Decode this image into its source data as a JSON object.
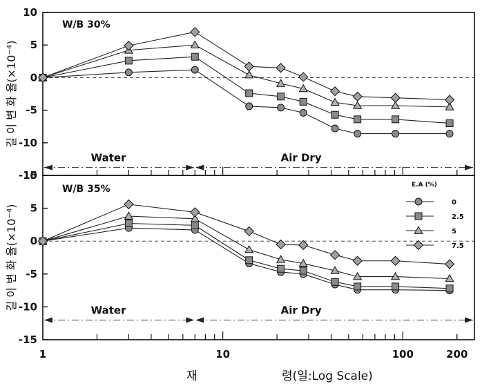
{
  "chart_data": {
    "type": "line",
    "x_scale": "log",
    "xlim": [
      1,
      250
    ],
    "x_ticks": [
      1,
      10,
      100,
      200
    ],
    "x_tick_labels": [
      "1",
      "10",
      "100",
      "200"
    ],
    "xlabel": [
      "재",
      "령(일:Log Scale)"
    ],
    "legend": {
      "title": "E.A (%)",
      "placement": "top-right of lower panel",
      "entries": [
        {
          "label": "0",
          "marker": "circle"
        },
        {
          "label": "2.5",
          "marker": "square"
        },
        {
          "label": "5",
          "marker": "triangle"
        },
        {
          "label": "7.5",
          "marker": "diamond"
        }
      ]
    },
    "panels": [
      {
        "label": "W/B 30%",
        "ylabel": "길 이 변 화 율(×10⁻⁴)",
        "ylim": [
          -15,
          10
        ],
        "y_ticks": [
          10,
          5,
          0,
          -5,
          -10,
          -15
        ],
        "periods": [
          {
            "label": "Water",
            "from": 1,
            "to": 7
          },
          {
            "label": "Air Dry",
            "from": 7,
            "to": 250
          }
        ],
        "period_line_y": -13.8,
        "x": [
          1,
          3,
          7,
          14,
          21,
          28,
          42,
          56,
          91,
          182
        ],
        "series": [
          {
            "marker": "circle",
            "values": [
              0,
              0.8,
              1.2,
              -4.4,
              -4.6,
              -5.4,
              -7.8,
              -8.6,
              -8.6,
              -8.6
            ]
          },
          {
            "marker": "square",
            "values": [
              0,
              2.6,
              3.2,
              -2.4,
              -2.9,
              -3.7,
              -5.7,
              -6.4,
              -6.4,
              -7.0
            ]
          },
          {
            "marker": "triangle",
            "values": [
              0,
              4.2,
              5.0,
              0.4,
              -0.9,
              -1.7,
              -3.8,
              -4.3,
              -4.3,
              -4.5
            ]
          },
          {
            "marker": "diamond",
            "values": [
              0,
              4.9,
              7.0,
              1.7,
              1.5,
              0.1,
              -2.1,
              -2.9,
              -3.1,
              -3.4
            ]
          }
        ]
      },
      {
        "label": "W/B 35%",
        "ylabel": "길 이 변 화 율(×10⁻⁴)",
        "ylim": [
          -15,
          10
        ],
        "y_ticks": [
          10,
          5,
          0,
          -5,
          -10,
          -15
        ],
        "periods": [
          {
            "label": "Water",
            "from": 1,
            "to": 7
          },
          {
            "label": "Air Dry",
            "from": 7,
            "to": 250
          }
        ],
        "period_line_y": -12.0,
        "x": [
          1,
          3,
          7,
          14,
          21,
          28,
          42,
          56,
          91,
          182
        ],
        "series": [
          {
            "marker": "circle",
            "values": [
              0,
              2.0,
              1.7,
              -3.4,
              -4.7,
              -5.0,
              -6.6,
              -7.4,
              -7.4,
              -7.5
            ]
          },
          {
            "marker": "square",
            "values": [
              0,
              2.7,
              2.4,
              -2.9,
              -4.2,
              -4.5,
              -6.2,
              -6.9,
              -6.9,
              -7.2
            ]
          },
          {
            "marker": "triangle",
            "values": [
              0,
              3.8,
              3.4,
              -1.3,
              -2.8,
              -3.4,
              -4.5,
              -5.4,
              -5.4,
              -5.7
            ]
          },
          {
            "marker": "diamond",
            "values": [
              0,
              5.6,
              4.4,
              1.5,
              -0.5,
              -0.6,
              -2.1,
              -3.0,
              -3.0,
              -3.5
            ]
          }
        ]
      }
    ]
  }
}
